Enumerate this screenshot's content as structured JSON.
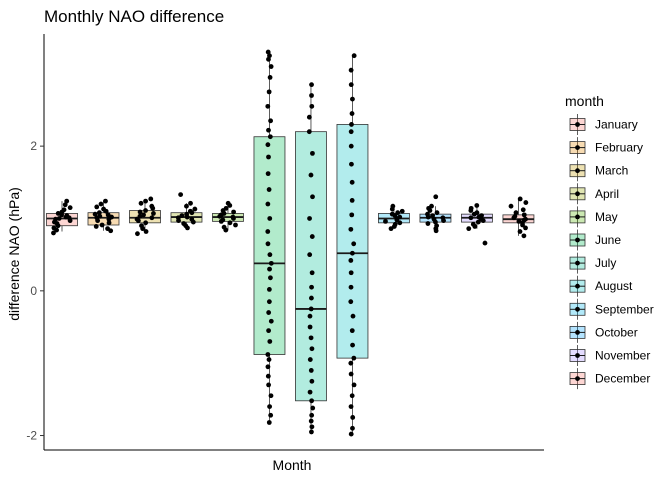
{
  "chart_data": {
    "type": "box",
    "title": "Monthly NAO difference",
    "xlabel": "Month",
    "ylabel": "difference NAO (hPa)",
    "ylim": [
      -2.2,
      3.55
    ],
    "yticks": [
      -2,
      0,
      2
    ],
    "grid": false,
    "legend": {
      "title": "month",
      "position": "right"
    },
    "series": [
      {
        "name": "January",
        "color": "#F8766D",
        "q1": 0.9,
        "median": 1.0,
        "q3": 1.07,
        "whisker_low": 0.82,
        "whisker_high": 1.24,
        "points": [
          0.8,
          0.84,
          0.87,
          0.9,
          0.93,
          0.95,
          0.97,
          0.99,
          1.0,
          1.01,
          1.02,
          1.04,
          1.05,
          1.07,
          1.09,
          1.12,
          1.15,
          1.19,
          1.24
        ]
      },
      {
        "name": "February",
        "color": "#E38900",
        "q1": 0.91,
        "median": 1.01,
        "q3": 1.08,
        "whisker_low": 0.83,
        "whisker_high": 1.24,
        "points": [
          0.83,
          0.86,
          0.89,
          0.91,
          0.94,
          0.97,
          0.99,
          1.01,
          1.02,
          1.03,
          1.05,
          1.06,
          1.08,
          1.1,
          1.13,
          1.16,
          1.2,
          1.24
        ]
      },
      {
        "name": "March",
        "color": "#C49A00",
        "q1": 0.94,
        "median": 1.01,
        "q3": 1.11,
        "whisker_low": 0.79,
        "whisker_high": 1.27,
        "points": [
          0.79,
          0.82,
          0.86,
          0.9,
          0.94,
          0.97,
          0.99,
          1.01,
          1.03,
          1.05,
          1.07,
          1.09,
          1.11,
          1.14,
          1.17,
          1.21,
          1.24,
          1.27
        ]
      },
      {
        "name": "April",
        "color": "#99A800",
        "q1": 0.95,
        "median": 1.02,
        "q3": 1.08,
        "whisker_low": 0.87,
        "whisker_high": 1.21,
        "points": [
          0.87,
          0.9,
          0.93,
          0.95,
          0.97,
          0.99,
          1.01,
          1.02,
          1.04,
          1.06,
          1.08,
          1.1,
          1.13,
          1.17,
          1.21,
          1.33
        ]
      },
      {
        "name": "May",
        "color": "#53B400",
        "q1": 0.96,
        "median": 1.02,
        "q3": 1.07,
        "whisker_low": 0.84,
        "whisker_high": 1.21,
        "points": [
          0.84,
          0.88,
          0.91,
          0.94,
          0.96,
          0.98,
          1.0,
          1.02,
          1.03,
          1.05,
          1.07,
          1.09,
          1.11,
          1.14,
          1.18,
          1.21
        ]
      },
      {
        "name": "June",
        "color": "#00BC56",
        "q1": -0.88,
        "median": 0.38,
        "q3": 2.13,
        "whisker_low": -1.82,
        "whisker_high": 3.3,
        "points": [
          -1.82,
          -1.72,
          -1.6,
          -1.45,
          -1.3,
          -1.18,
          -1.05,
          -0.95,
          -0.88,
          -0.7,
          -0.55,
          -0.42,
          -0.3,
          -0.15,
          0.02,
          0.18,
          0.3,
          0.38,
          0.5,
          0.65,
          0.82,
          1.0,
          1.2,
          1.4,
          1.62,
          1.85,
          2.02,
          2.13,
          2.22,
          2.35,
          2.55,
          2.75,
          2.95,
          3.1,
          3.2,
          3.25,
          3.3
        ]
      },
      {
        "name": "July",
        "color": "#00C094",
        "q1": -1.52,
        "median": -0.25,
        "q3": 2.2,
        "whisker_low": -1.95,
        "whisker_high": 2.85,
        "points": [
          -1.95,
          -1.88,
          -1.8,
          -1.72,
          -1.62,
          -1.52,
          -1.4,
          -1.25,
          -1.1,
          -0.95,
          -0.8,
          -0.65,
          -0.5,
          -0.35,
          -0.25,
          -0.1,
          0.05,
          0.25,
          0.5,
          0.75,
          1.0,
          1.3,
          1.6,
          1.9,
          2.2,
          2.4,
          2.55,
          2.7,
          2.85
        ]
      },
      {
        "name": "August",
        "color": "#00BFC4",
        "q1": -0.93,
        "median": 0.52,
        "q3": 2.3,
        "whisker_low": -1.98,
        "whisker_high": 3.25,
        "points": [
          -1.98,
          -1.9,
          -1.75,
          -1.6,
          -1.45,
          -1.3,
          -1.15,
          -1.0,
          -0.93,
          -0.75,
          -0.55,
          -0.35,
          -0.15,
          0.05,
          0.25,
          0.42,
          0.52,
          0.65,
          0.85,
          1.05,
          1.25,
          1.5,
          1.75,
          2.0,
          2.2,
          2.3,
          2.45,
          2.65,
          2.85,
          3.05,
          3.25
        ]
      },
      {
        "name": "September",
        "color": "#00B6EB",
        "q1": 0.94,
        "median": 1.0,
        "q3": 1.07,
        "whisker_low": 0.86,
        "whisker_high": 1.17,
        "points": [
          0.86,
          0.89,
          0.92,
          0.94,
          0.96,
          0.98,
          1.0,
          1.02,
          1.04,
          1.06,
          1.08,
          1.1,
          1.13,
          1.17
        ]
      },
      {
        "name": "October",
        "color": "#06A4FF",
        "q1": 0.95,
        "median": 1.01,
        "q3": 1.06,
        "whisker_low": 0.83,
        "whisker_high": 1.17,
        "points": [
          0.83,
          0.86,
          0.9,
          0.93,
          0.95,
          0.97,
          0.99,
          1.01,
          1.02,
          1.04,
          1.06,
          1.08,
          1.11,
          1.14,
          1.17,
          1.3
        ]
      },
      {
        "name": "November",
        "color": "#A58AFF",
        "q1": 0.95,
        "median": 1.01,
        "q3": 1.06,
        "whisker_low": 0.86,
        "whisker_high": 1.18,
        "points": [
          0.66,
          0.86,
          0.89,
          0.92,
          0.95,
          0.97,
          0.99,
          1.01,
          1.02,
          1.04,
          1.06,
          1.08,
          1.11,
          1.14,
          1.18
        ]
      },
      {
        "name": "December",
        "color": "#F8766D",
        "q1": 0.94,
        "median": 0.99,
        "q3": 1.05,
        "whisker_low": 0.76,
        "whisker_high": 1.27,
        "points": [
          0.76,
          0.82,
          0.87,
          0.91,
          0.94,
          0.96,
          0.98,
          0.99,
          1.01,
          1.03,
          1.05,
          1.08,
          1.12,
          1.17,
          1.22,
          1.27
        ]
      }
    ]
  }
}
